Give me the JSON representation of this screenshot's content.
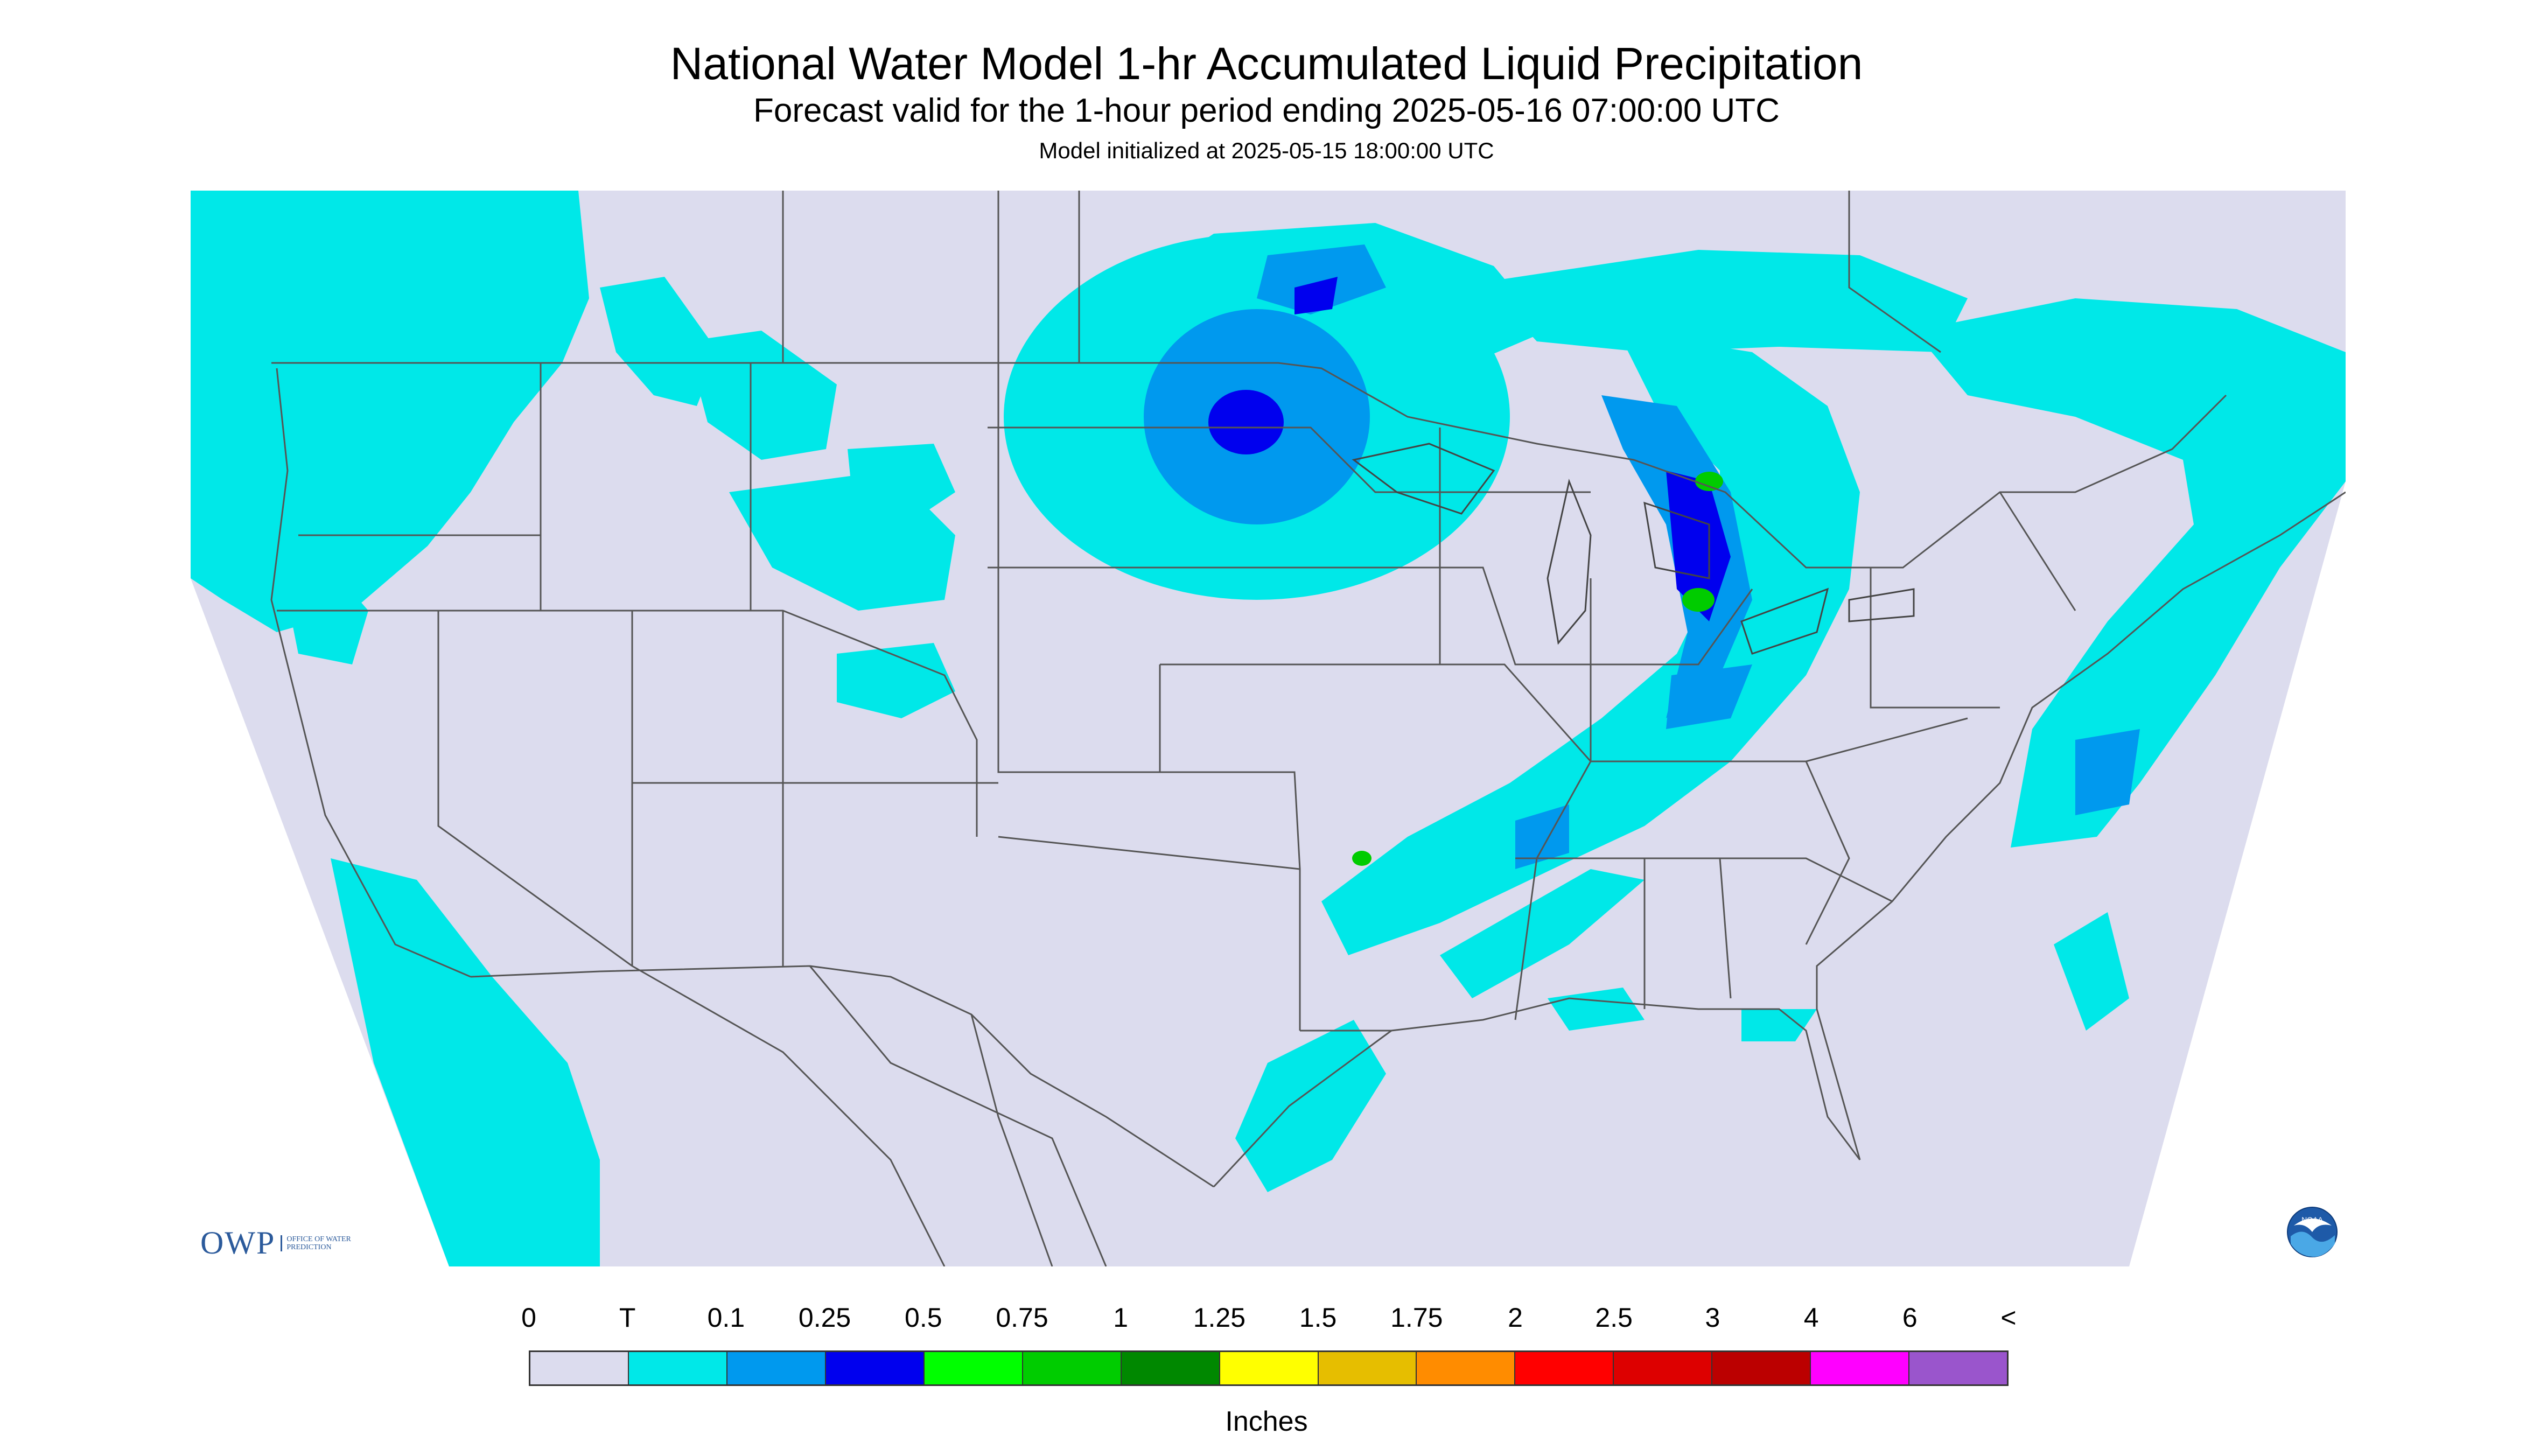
{
  "header": {
    "title": "National Water Model 1-hr Accumulated Liquid Precipitation",
    "subtitle": "Forecast valid for the 1-hour period ending 2025-05-16 07:00:00 UTC",
    "init": "Model initialized at 2025-05-15 18:00:00 UTC"
  },
  "legend": {
    "labels": [
      "0",
      "T",
      "0.1",
      "0.25",
      "0.5",
      "0.75",
      "1",
      "1.25",
      "1.5",
      "1.75",
      "2",
      "2.5",
      "3",
      "4",
      "6",
      "<"
    ],
    "colors": [
      "#dcdcee",
      "#00e8e8",
      "#0099ee",
      "#0000ee",
      "#00ff00",
      "#00cc00",
      "#008800",
      "#ffff00",
      "#e6be00",
      "#ff8c00",
      "#ff0000",
      "#dd0000",
      "#bb0000",
      "#ff00ff",
      "#9a55cc"
    ],
    "units": "Inches"
  },
  "logos": {
    "owp_mark": "OWP",
    "owp_text": "OFFICE OF WATER PREDICTION",
    "noaa_text": "NOAA"
  },
  "map": {
    "background_color": "#dcdcee",
    "outside_color": "#ffffff",
    "trace_color": "#00e8e8",
    "light_color": "#0099ee",
    "heavy_color": "#0000ee",
    "green_color": "#00cc00",
    "border_color": "#555555"
  }
}
